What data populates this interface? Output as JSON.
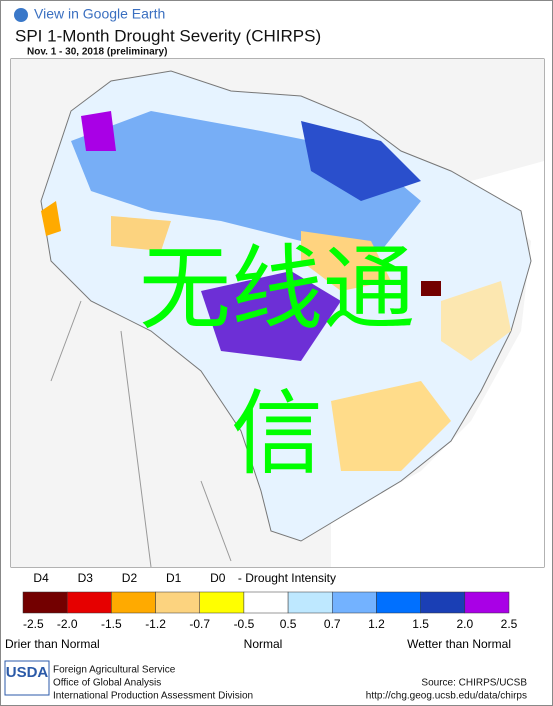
{
  "header": {
    "link": "View in Google Earth",
    "title": "SPI 1-Month Drought Severity (CHIRPS)",
    "subtitle": "Nov. 1 - 30, 2018 (preliminary)"
  },
  "watermark": {
    "line1": "无线通",
    "line2": "信"
  },
  "legend": {
    "categories": [
      "D4",
      "D3",
      "D2",
      "D1",
      "D0"
    ],
    "caption": "- Drought Intensity",
    "colors": [
      "#730000",
      "#e60000",
      "#ffaa00",
      "#fcd37f",
      "#ffff00",
      "#ffffff",
      "#bee8ff",
      "#73b2ff",
      "#0070ff",
      "#1a3fb5",
      "#a900e6"
    ],
    "ticks": [
      -2.5,
      {
        "value": -2,
        "label": "-2.0"
      },
      -1.5,
      -1.2,
      -0.7,
      -0.5,
      0.5,
      0.7,
      1.2,
      1.5,
      {
        "value": 2,
        "label": "2.0"
      },
      2.5
    ],
    "labels": [
      "Drier than Normal",
      "Normal",
      "Wetter than Normal"
    ]
  },
  "footer": {
    "agency": "USDA",
    "line1": "Foreign Agricultural Service",
    "line2": "Office of Global Analysis",
    "line3": "International Production Assessment Division",
    "source": "Source: CHIRPS/UCSB",
    "url": "http://chg.geog.ucsb.edu/data/chirps"
  }
}
